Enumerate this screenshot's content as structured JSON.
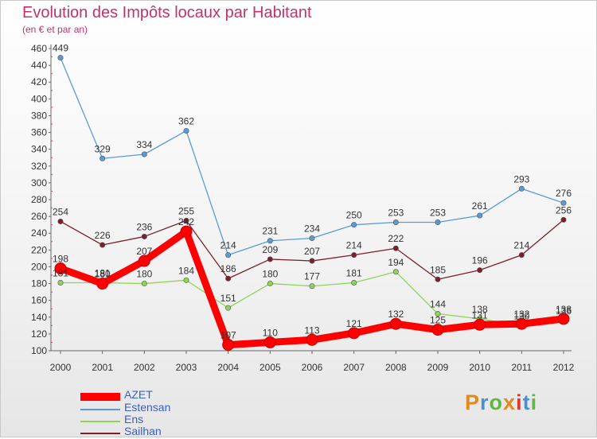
{
  "title": "Evolution des Impôts locaux par Habitant",
  "subtitle": "(en € et par an)",
  "logo": {
    "text": "Proxiti",
    "colors": [
      "#e08a1e",
      "#4b8fd4",
      "#5fb843",
      "#e08a1e",
      "#d93a2f",
      "#4b8fd4",
      "#5fb843"
    ]
  },
  "chart_data": {
    "type": "line",
    "x": [
      "2000",
      "2001",
      "2002",
      "2003",
      "2004",
      "2005",
      "2006",
      "2007",
      "2008",
      "2009",
      "2010",
      "2011",
      "2012"
    ],
    "ylim": [
      100,
      460
    ],
    "yticks": [
      100,
      120,
      140,
      160,
      180,
      200,
      220,
      240,
      260,
      280,
      300,
      320,
      340,
      360,
      380,
      400,
      420,
      440,
      460
    ],
    "grid": false,
    "legend_position": "bottom-left",
    "series": [
      {
        "name": "AZET",
        "color": "#ff0000",
        "values": [
          198,
          180,
          207,
          242,
          107,
          110,
          113,
          121,
          132,
          125,
          131,
          132,
          138
        ],
        "labels": [
          "198",
          "180",
          "207",
          "242",
          "107",
          "110",
          "113",
          "121",
          "132",
          "125",
          "131",
          "132",
          "138"
        ]
      },
      {
        "name": "Estensan",
        "color": "#5b9bd5",
        "values": [
          449,
          329,
          334,
          362,
          214,
          231,
          234,
          250,
          253,
          253,
          261,
          293,
          276
        ],
        "labels": [
          "449",
          "329",
          "334",
          "362",
          "214",
          "231",
          "234",
          "250",
          "253",
          "253",
          "261",
          "293",
          "276"
        ]
      },
      {
        "name": "Ens",
        "color": "#8fd45a",
        "values": [
          181,
          181,
          180,
          184,
          151,
          180,
          177,
          181,
          194,
          144,
          138,
          130,
          136
        ],
        "labels": [
          "181",
          "181",
          "180",
          "184",
          "151",
          "180",
          "177",
          "181",
          "194",
          "144",
          "138",
          "130",
          "136"
        ]
      },
      {
        "name": "Sailhan",
        "color": "#7a1f2b",
        "values": [
          254,
          226,
          236,
          255,
          186,
          209,
          207,
          214,
          222,
          185,
          196,
          214,
          256
        ],
        "labels": [
          "254",
          "226",
          "236",
          "255",
          "186",
          "209",
          "207",
          "214",
          "222",
          "185",
          "196",
          "214",
          "256"
        ]
      }
    ]
  }
}
